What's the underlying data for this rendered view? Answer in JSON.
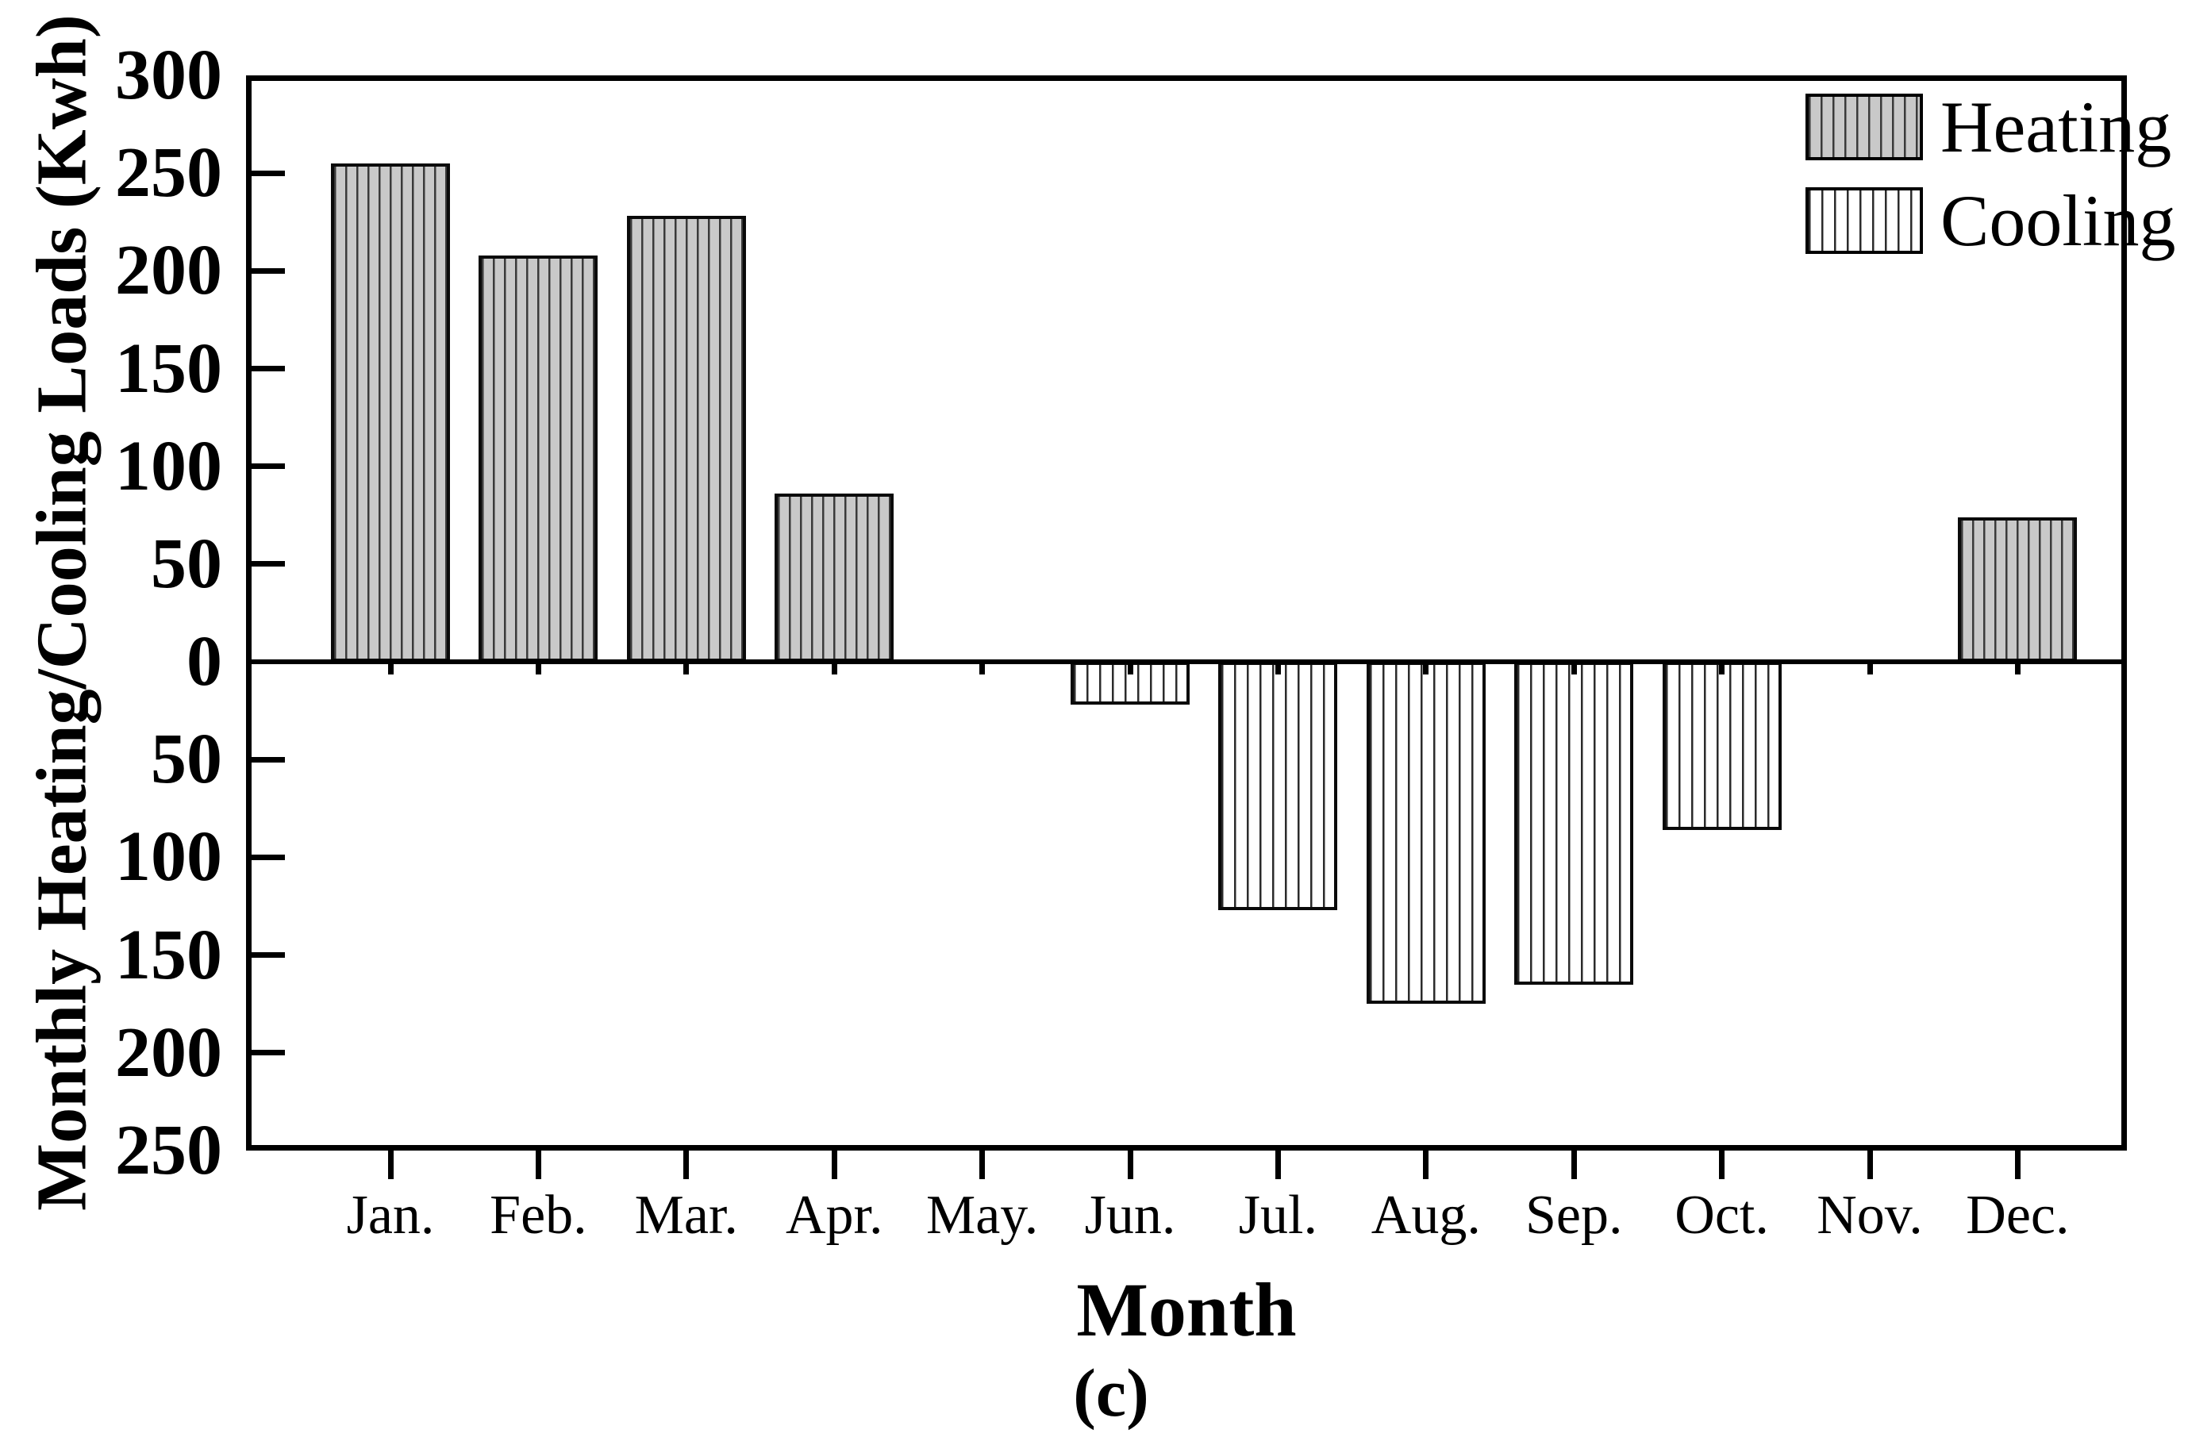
{
  "figure": {
    "caption": "(c)",
    "background_color": "#ffffff",
    "axis_color": "#000000"
  },
  "chart_data": {
    "type": "bar",
    "title": "",
    "xlabel": "Month",
    "ylabel": "Monthly Heating/Cooling Loads (Kwh)",
    "categories": [
      "Jan.",
      "Feb.",
      "Mar.",
      "Apr.",
      "May.",
      "Jun.",
      "Jul.",
      "Aug.",
      "Sep.",
      "Oct.",
      "Nov.",
      "Dec."
    ],
    "series": [
      {
        "name": "Heating",
        "values": [
          255,
          208,
          228,
          86,
          0,
          0,
          0,
          0,
          0,
          0,
          0,
          74
        ],
        "fill_color": "#c9c9c9",
        "hatch": "vertical-lines",
        "hatch_color": "#3a3a3a"
      },
      {
        "name": "Cooling",
        "values": [
          0,
          0,
          0,
          0,
          0,
          -22,
          -127,
          -175,
          -165,
          -86,
          0,
          0
        ],
        "fill_color": "#ffffff",
        "hatch": "vertical-lines",
        "hatch_color": "#2b2b2b"
      }
    ],
    "ylim": [
      -250,
      300
    ],
    "y_tick_step": 50,
    "y_tick_values": [
      300,
      250,
      200,
      150,
      100,
      50,
      0,
      -50,
      -100,
      -150,
      -200,
      -250
    ],
    "y_tick_labels": [
      "300",
      "250",
      "200",
      "150",
      "100",
      "50",
      "0",
      "50",
      "100",
      "150",
      "200",
      "250"
    ],
    "grid": false,
    "legend_position": "top-right-inside",
    "baseline": 0
  }
}
